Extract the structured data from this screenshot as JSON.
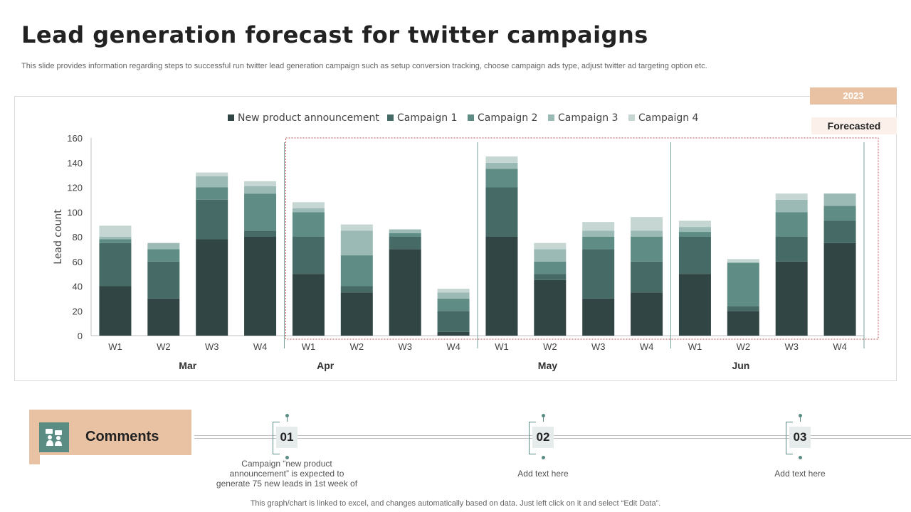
{
  "header": {
    "title": "Lead generation forecast for twitter campaigns",
    "subtitle": "This slide provides information regarding steps to successful run twitter lead generation campaign such as setup conversion tracking, choose campaign ads type, adjust twitter ad targeting option etc."
  },
  "badges": {
    "year": "2023",
    "forecasted": "Forecasted"
  },
  "colors": {
    "new_product": "#314644",
    "campaign1": "#466a66",
    "campaign2": "#5f8d86",
    "campaign3": "#9cbab5",
    "campaign4": "#c5d6d3",
    "accent": "#e8c2a3",
    "forecast_border": "#c0504d"
  },
  "chart_data": {
    "type": "bar",
    "stacked": true,
    "title": "",
    "ylabel": "Lead count",
    "xlabel": "",
    "ylim": [
      0,
      160
    ],
    "yticks": [
      0,
      20,
      40,
      60,
      80,
      100,
      120,
      140,
      160
    ],
    "legend_position": "top",
    "categories": [
      "W1",
      "W2",
      "W3",
      "W4",
      "W1",
      "W2",
      "W3",
      "W4",
      "W1",
      "W2",
      "W3",
      "W4",
      "W1",
      "W2",
      "W3",
      "W4"
    ],
    "groups": [
      {
        "label": "Mar",
        "span": 4
      },
      {
        "label": "Apr",
        "span": 4
      },
      {
        "label": "May",
        "span": 4
      },
      {
        "label": "Jun",
        "span": 4
      }
    ],
    "forecast_start_index": 4,
    "series": [
      {
        "name": "New product announcement",
        "values": [
          40,
          30,
          78,
          80,
          50,
          35,
          70,
          3,
          80,
          45,
          30,
          35,
          50,
          20,
          60,
          75
        ]
      },
      {
        "name": "Campaign 1",
        "values": [
          35,
          30,
          32,
          5,
          30,
          5,
          10,
          17,
          40,
          5,
          40,
          25,
          30,
          4,
          20,
          18
        ]
      },
      {
        "name": "Campaign 2",
        "values": [
          3,
          10,
          10,
          30,
          20,
          25,
          3,
          10,
          15,
          10,
          10,
          20,
          4,
          35,
          20,
          12
        ]
      },
      {
        "name": "Campaign 3",
        "values": [
          2,
          5,
          9,
          6,
          3,
          20,
          3,
          5,
          5,
          10,
          5,
          5,
          4,
          0,
          10,
          10
        ]
      },
      {
        "name": "Campaign 4",
        "values": [
          9,
          0,
          3,
          4,
          5,
          5,
          0,
          3,
          5,
          5,
          7,
          11,
          5,
          3,
          5,
          0
        ]
      }
    ]
  },
  "comments": {
    "label": "Comments",
    "items": [
      {
        "number": "01",
        "text": "Campaign “new product announcement” is expected to generate 75 new leads in 1st week of"
      },
      {
        "number": "02",
        "text": "Add text here"
      },
      {
        "number": "03",
        "text": "Add text here"
      }
    ]
  },
  "footnote": "This graph/chart is linked to excel,  and changes automatically based on data. Just left click on it and select “Edit Data”."
}
